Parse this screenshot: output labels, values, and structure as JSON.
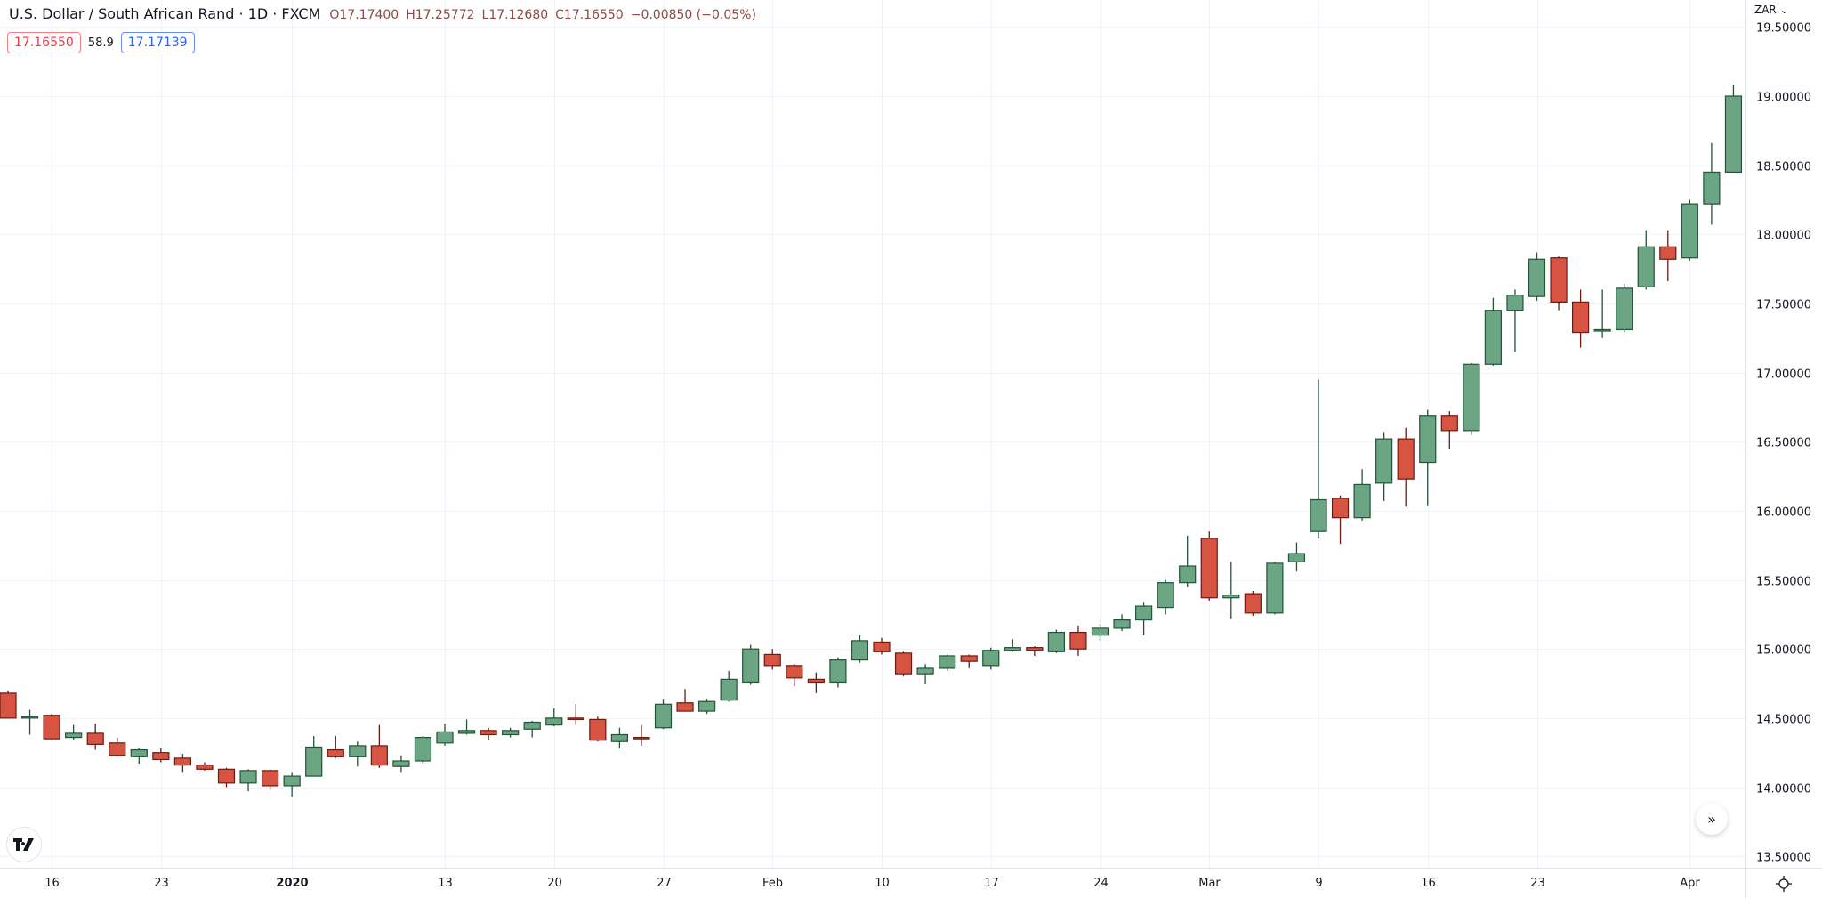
{
  "legend": {
    "title": "U.S. Dollar / South African Rand · 1D · FXCM",
    "open": "O17.17400",
    "high": "H17.25772",
    "low": "L17.12680",
    "close": "C17.16550",
    "change": "−0.00850 (−0.05%)",
    "bid": "17.16550",
    "spread": "58.9",
    "ask": "17.17139"
  },
  "price_axis": {
    "currency": "ZAR ⌄"
  },
  "buttons": {
    "scroll_to_realtime": "»"
  },
  "icons": {
    "logo": "tradingview-logo",
    "settings": "gear-icon",
    "scroll": "double-chevron-right-icon"
  },
  "colors": {
    "up": "#6ba583",
    "up_border": "#225437",
    "down": "#d75442",
    "down_border": "#6b1b12",
    "grid": "#f0f3fa"
  },
  "chart_data": {
    "type": "candlestick",
    "symbol": "USDZAR",
    "interval": "1D",
    "ylim": [
      13.5,
      19.5
    ],
    "y_ticks": [
      "19.50000",
      "19.00000",
      "18.50000",
      "18.00000",
      "17.50000",
      "17.00000",
      "16.50000",
      "16.00000",
      "15.50000",
      "15.00000",
      "14.50000",
      "14.00000",
      "13.50000"
    ],
    "y_tick_values": [
      19.5,
      19,
      18.5,
      18,
      17.5,
      17,
      16.5,
      16,
      15.5,
      15,
      14.5,
      14,
      13.5
    ],
    "x_ticks": [
      {
        "label": "16",
        "bar": 2
      },
      {
        "label": "23",
        "bar": 7
      },
      {
        "label": "2020",
        "bar": 13
      },
      {
        "label": "13",
        "bar": 20
      },
      {
        "label": "20",
        "bar": 25
      },
      {
        "label": "27",
        "bar": 30
      },
      {
        "label": "Feb",
        "bar": 35
      },
      {
        "label": "10",
        "bar": 40
      },
      {
        "label": "17",
        "bar": 45
      },
      {
        "label": "24",
        "bar": 50
      },
      {
        "label": "Mar",
        "bar": 55
      },
      {
        "label": "9",
        "bar": 60
      },
      {
        "label": "16",
        "bar": 65
      },
      {
        "label": "23",
        "bar": 70
      },
      {
        "label": "Apr",
        "bar": 77
      }
    ],
    "grid": true,
    "ohlc": [
      [
        14.68,
        14.7,
        14.5,
        14.5
      ],
      [
        14.5,
        14.56,
        14.38,
        14.51
      ],
      [
        14.52,
        14.53,
        14.34,
        14.35
      ],
      [
        14.36,
        14.45,
        14.34,
        14.39
      ],
      [
        14.39,
        14.46,
        14.27,
        14.31
      ],
      [
        14.32,
        14.36,
        14.22,
        14.23
      ],
      [
        14.22,
        14.28,
        14.17,
        14.27
      ],
      [
        14.25,
        14.28,
        14.18,
        14.2
      ],
      [
        14.21,
        14.24,
        14.11,
        14.16
      ],
      [
        14.16,
        14.18,
        14.12,
        14.13
      ],
      [
        14.13,
        14.14,
        14.0,
        14.03
      ],
      [
        14.03,
        14.13,
        13.97,
        14.12
      ],
      [
        14.12,
        14.13,
        13.98,
        14.01
      ],
      [
        14.01,
        14.11,
        13.93,
        14.08
      ],
      [
        14.08,
        14.37,
        14.08,
        14.29
      ],
      [
        14.27,
        14.37,
        14.21,
        14.22
      ],
      [
        14.22,
        14.33,
        14.15,
        14.3
      ],
      [
        14.3,
        14.45,
        14.14,
        14.16
      ],
      [
        14.15,
        14.23,
        14.11,
        14.19
      ],
      [
        14.19,
        14.37,
        14.17,
        14.36
      ],
      [
        14.32,
        14.46,
        14.3,
        14.4
      ],
      [
        14.39,
        14.49,
        14.38,
        14.41
      ],
      [
        14.41,
        14.43,
        14.34,
        14.38
      ],
      [
        14.38,
        14.43,
        14.36,
        14.41
      ],
      [
        14.42,
        14.48,
        14.36,
        14.47
      ],
      [
        14.45,
        14.57,
        14.44,
        14.5
      ],
      [
        14.5,
        14.6,
        14.45,
        14.49
      ],
      [
        14.49,
        14.51,
        14.33,
        14.34
      ],
      [
        14.33,
        14.43,
        14.28,
        14.38
      ],
      [
        14.36,
        14.45,
        14.3,
        14.35
      ],
      [
        14.43,
        14.64,
        14.42,
        14.6
      ],
      [
        14.61,
        14.71,
        14.55,
        14.55
      ],
      [
        14.55,
        14.64,
        14.53,
        14.62
      ],
      [
        14.63,
        14.84,
        14.62,
        14.78
      ],
      [
        14.76,
        15.03,
        14.74,
        15.0
      ],
      [
        14.96,
        15.0,
        14.85,
        14.88
      ],
      [
        14.88,
        14.89,
        14.73,
        14.79
      ],
      [
        14.78,
        14.83,
        14.68,
        14.76
      ],
      [
        14.76,
        14.94,
        14.72,
        14.92
      ],
      [
        14.92,
        15.1,
        14.9,
        15.06
      ],
      [
        15.05,
        15.08,
        14.96,
        14.98
      ],
      [
        14.97,
        14.98,
        14.8,
        14.82
      ],
      [
        14.82,
        14.89,
        14.75,
        14.86
      ],
      [
        14.86,
        14.96,
        14.84,
        14.95
      ],
      [
        14.95,
        14.96,
        14.86,
        14.91
      ],
      [
        14.88,
        15.01,
        14.85,
        14.99
      ],
      [
        14.99,
        15.07,
        14.98,
        15.01
      ],
      [
        15.01,
        15.02,
        14.95,
        14.99
      ],
      [
        14.98,
        15.14,
        14.97,
        15.12
      ],
      [
        15.12,
        15.17,
        14.95,
        15.0
      ],
      [
        15.1,
        15.18,
        15.06,
        15.15
      ],
      [
        15.15,
        15.25,
        15.13,
        15.21
      ],
      [
        15.21,
        15.34,
        15.1,
        15.31
      ],
      [
        15.3,
        15.5,
        15.25,
        15.48
      ],
      [
        15.48,
        15.82,
        15.45,
        15.6
      ],
      [
        15.8,
        15.85,
        15.35,
        15.37
      ],
      [
        15.37,
        15.63,
        15.22,
        15.39
      ],
      [
        15.4,
        15.42,
        15.24,
        15.26
      ],
      [
        15.26,
        15.63,
        15.25,
        15.62
      ],
      [
        15.63,
        15.77,
        15.56,
        15.69
      ],
      [
        15.85,
        16.95,
        15.8,
        16.08
      ],
      [
        16.09,
        16.11,
        15.76,
        15.95
      ],
      [
        15.95,
        16.3,
        15.93,
        16.19
      ],
      [
        16.2,
        16.57,
        16.07,
        16.52
      ],
      [
        16.52,
        16.6,
        16.03,
        16.23
      ],
      [
        16.35,
        16.73,
        16.04,
        16.69
      ],
      [
        16.69,
        16.72,
        16.45,
        16.58
      ],
      [
        16.58,
        17.07,
        16.55,
        17.06
      ],
      [
        17.06,
        17.54,
        17.05,
        17.45
      ],
      [
        17.45,
        17.6,
        17.15,
        17.56
      ],
      [
        17.55,
        17.87,
        17.52,
        17.82
      ],
      [
        17.83,
        17.84,
        17.45,
        17.51
      ],
      [
        17.51,
        17.6,
        17.18,
        17.29
      ],
      [
        17.3,
        17.6,
        17.25,
        17.31
      ],
      [
        17.31,
        17.64,
        17.29,
        17.61
      ],
      [
        17.62,
        18.03,
        17.6,
        17.91
      ],
      [
        17.91,
        18.03,
        17.66,
        17.82
      ],
      [
        17.83,
        18.25,
        17.81,
        18.22
      ],
      [
        18.22,
        18.66,
        18.07,
        18.45
      ],
      [
        18.45,
        19.08,
        18.45,
        19.0
      ]
    ]
  }
}
